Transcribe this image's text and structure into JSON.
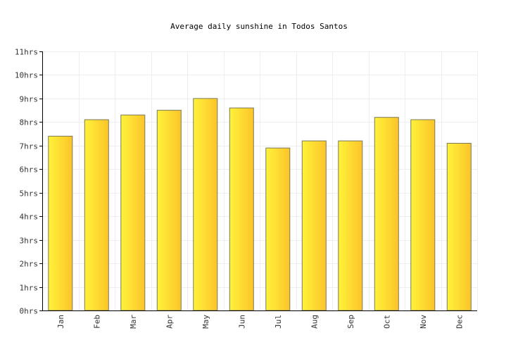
{
  "chart_data": {
    "type": "bar",
    "title": "Average daily sunshine in Todos Santos",
    "xlabel": "",
    "ylabel": "",
    "categories": [
      "Jan",
      "Feb",
      "Mar",
      "Apr",
      "May",
      "Jun",
      "Jul",
      "Aug",
      "Sep",
      "Oct",
      "Nov",
      "Dec"
    ],
    "values": [
      7.4,
      8.1,
      8.3,
      8.5,
      9.0,
      8.6,
      6.9,
      7.2,
      7.2,
      8.2,
      8.1,
      7.1
    ],
    "ylim": [
      0,
      11
    ],
    "yticks": [
      "0hrs",
      "1hrs",
      "2hrs",
      "3hrs",
      "4hrs",
      "5hrs",
      "6hrs",
      "7hrs",
      "8hrs",
      "9hrs",
      "10hrs",
      "11hrs"
    ],
    "grid": true,
    "legend": "none",
    "colors": {
      "bar_light": "#fff23a",
      "bar_dark": "#fcc42a",
      "bar_stroke": "#7a7a5a",
      "grid": "#eeeeee",
      "axis": "#000000"
    }
  }
}
